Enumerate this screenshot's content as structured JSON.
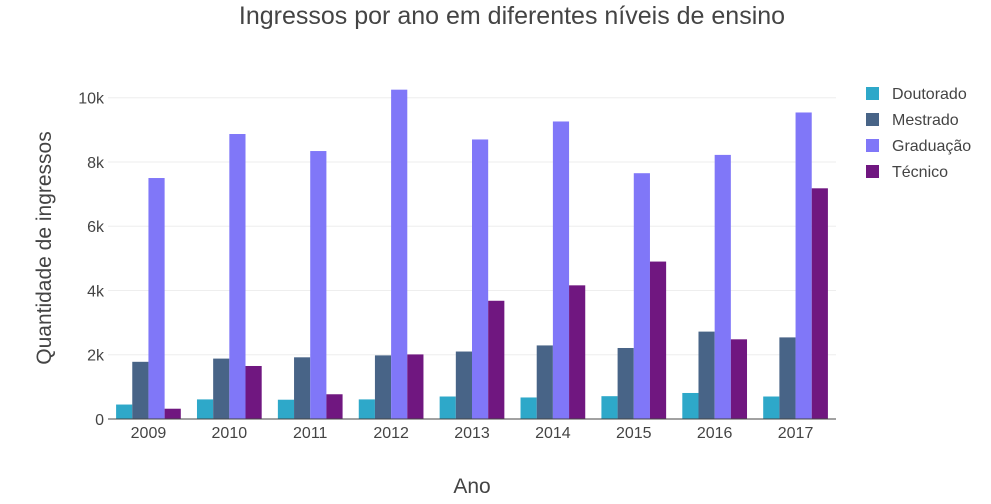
{
  "chart_data": {
    "type": "bar",
    "title": "Ingressos por ano em diferentes níveis de ensino",
    "xlabel": "Ano",
    "ylabel": "Quantidade de ingressos",
    "categories": [
      "2009",
      "2010",
      "2011",
      "2012",
      "2013",
      "2014",
      "2015",
      "2016",
      "2017"
    ],
    "ylim": [
      0,
      10800
    ],
    "yticks": [
      {
        "value": 0,
        "label": "0"
      },
      {
        "value": 2000,
        "label": "2k"
      },
      {
        "value": 4000,
        "label": "4k"
      },
      {
        "value": 6000,
        "label": "6k"
      },
      {
        "value": 8000,
        "label": "8k"
      },
      {
        "value": 10000,
        "label": "10k"
      }
    ],
    "grid": true,
    "legend_position": "top-right",
    "series": [
      {
        "name": "Doutorado",
        "color": "#2ea8c9",
        "values": [
          450,
          610,
          600,
          610,
          700,
          670,
          710,
          810,
          700
        ]
      },
      {
        "name": "Mestrado",
        "color": "#486487",
        "values": [
          1780,
          1880,
          1920,
          1980,
          2100,
          2290,
          2210,
          2720,
          2540
        ]
      },
      {
        "name": "Graduação",
        "color": "#8077f8",
        "values": [
          7500,
          8870,
          8340,
          10250,
          8700,
          9260,
          7650,
          8220,
          9540
        ]
      },
      {
        "name": "Técnico",
        "color": "#701780",
        "values": [
          320,
          1650,
          770,
          2010,
          3680,
          4160,
          4900,
          2480,
          7180
        ]
      }
    ]
  }
}
